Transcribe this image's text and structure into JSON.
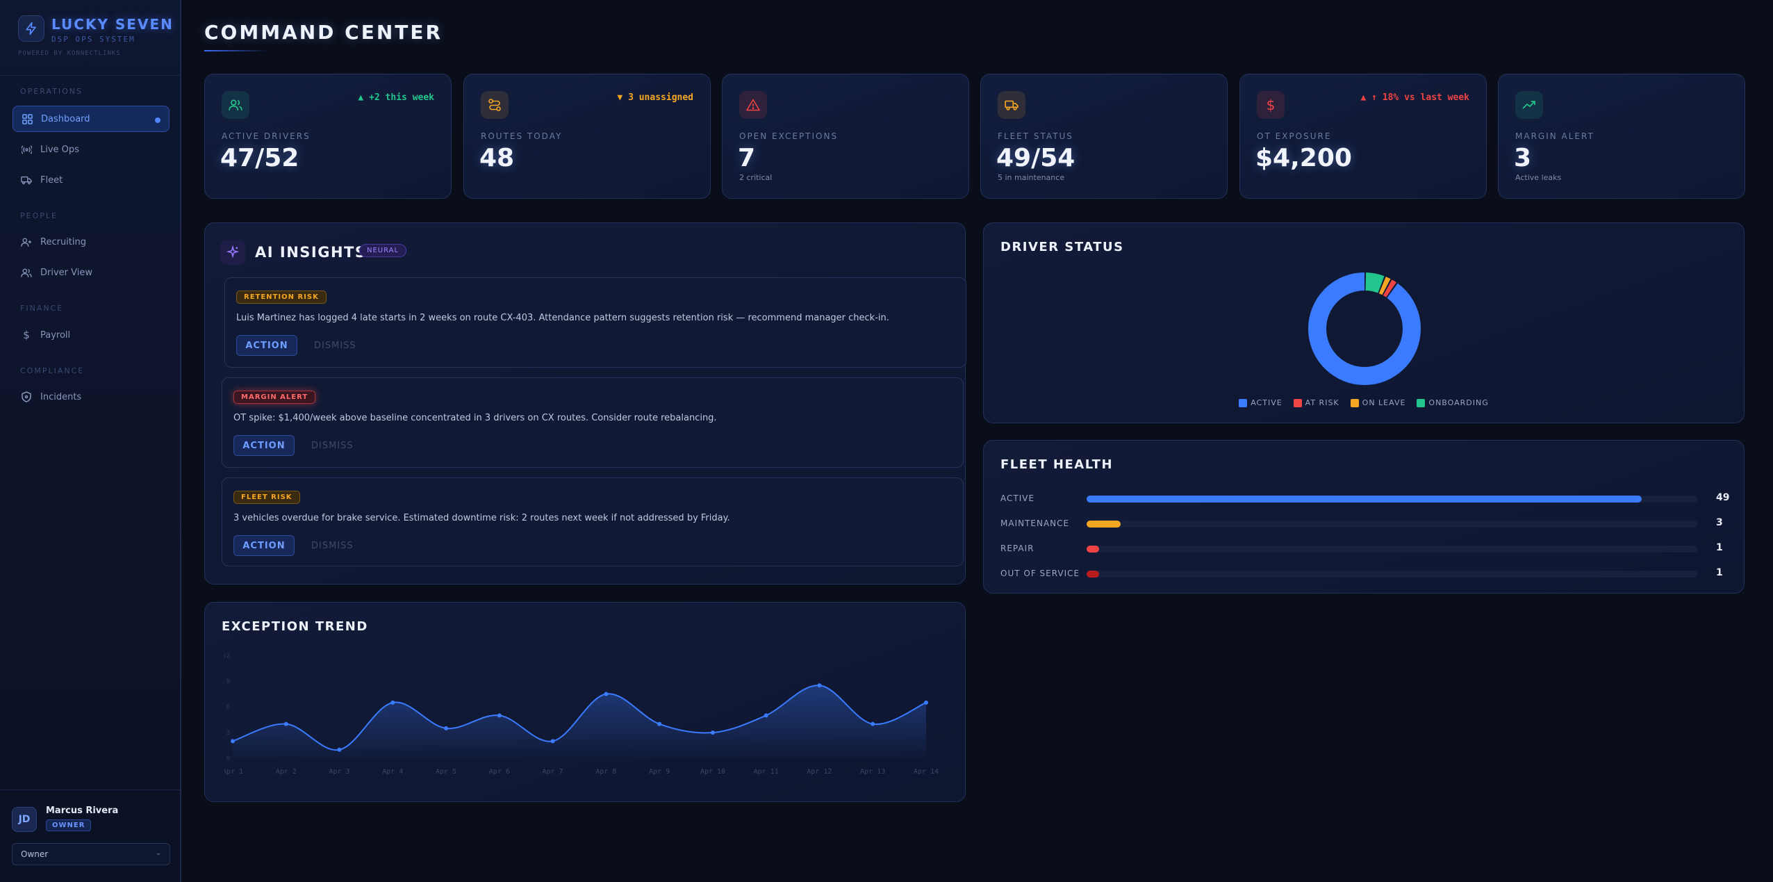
{
  "brand": {
    "name": "LUCKY SEVEN",
    "subtitle": "DSP OPS SYSTEM",
    "powered": "POWERED BY KONNECTLINKS"
  },
  "sidebar": {
    "sections": {
      "operations": "OPERATIONS",
      "people": "PEOPLE",
      "finance": "FINANCE",
      "compliance": "COMPLIANCE"
    },
    "items": [
      {
        "label": "Dashboard",
        "icon": "grid-icon",
        "active": true
      },
      {
        "label": "Live Ops",
        "icon": "broadcast-icon"
      },
      {
        "label": "Fleet",
        "icon": "truck-icon"
      },
      {
        "label": "Recruiting",
        "icon": "user-plus-icon"
      },
      {
        "label": "Driver View",
        "icon": "users-icon"
      },
      {
        "label": "Payroll",
        "icon": "dollar-icon"
      },
      {
        "label": "Incidents",
        "icon": "shield-icon"
      }
    ]
  },
  "user": {
    "initials": "JD",
    "name": "Marcus Rivera",
    "role": "OWNER",
    "role_select": "Owner"
  },
  "page": {
    "title": "COMMAND CENTER"
  },
  "stats": [
    {
      "label": "ACTIVE DRIVERS",
      "value": "47/52",
      "delta": "▲ +2 this week",
      "sub": "",
      "icon": "users-icon",
      "color": "#22c58b"
    },
    {
      "label": "ROUTES TODAY",
      "value": "48",
      "delta": "▼ 3 unassigned",
      "sub": "",
      "icon": "route-icon",
      "color": "#f5a623"
    },
    {
      "label": "OPEN EXCEPTIONS",
      "value": "7",
      "delta": "",
      "sub": "2 critical",
      "icon": "alert-icon",
      "color": "#ef4444"
    },
    {
      "label": "FLEET STATUS",
      "value": "49/54",
      "delta": "",
      "sub": "5 in maintenance",
      "icon": "truck-icon",
      "color": "#f5a623"
    },
    {
      "label": "OT EXPOSURE",
      "value": "$4,200",
      "delta": "▲ ↑ 18% vs last week",
      "sub": "",
      "icon": "dollar-icon",
      "color": "#ef4444"
    },
    {
      "label": "MARGIN ALERT",
      "value": "3",
      "delta": "",
      "sub": "Active leaks",
      "icon": "trend-up-icon",
      "color": "#22c58b"
    }
  ],
  "insights": {
    "title": "AI INSIGHTS",
    "badge": "NEURAL",
    "action_label": "ACTION",
    "dismiss_label": "DISMISS",
    "items": [
      {
        "tag": "RETENTION RISK",
        "text": "Luis Martinez has logged 4 late starts in 2 weeks on route CX-403. Attendance pattern suggests retention risk — recommend manager check-in.",
        "color": "#f5a623"
      },
      {
        "tag": "MARGIN ALERT",
        "text": "OT spike: $1,400/week above baseline concentrated in 3 drivers on CX routes. Consider route rebalancing.",
        "color": "#ef4444"
      },
      {
        "tag": "FLEET RISK",
        "text": "3 vehicles overdue for brake service. Estimated downtime risk: 2 routes next week if not addressed by Friday.",
        "color": "#f5a623"
      }
    ]
  },
  "driver_status": {
    "title": "DRIVER STATUS",
    "legend": [
      {
        "name": "ACTIVE",
        "value": 47,
        "color": "#3b7bff"
      },
      {
        "name": "AT RISK",
        "value": 1,
        "color": "#ef4444"
      },
      {
        "name": "ON LEAVE",
        "value": 1,
        "color": "#f5a623"
      },
      {
        "name": "ONBOARDING",
        "value": 3,
        "color": "#22c58b"
      }
    ]
  },
  "fleet_health": {
    "title": "FLEET HEALTH",
    "max": 54,
    "rows": [
      {
        "label": "ACTIVE",
        "value": 49,
        "color": "#3b7bff"
      },
      {
        "label": "MAINTENANCE",
        "value": 3,
        "color": "#f5a623"
      },
      {
        "label": "REPAIR",
        "value": 1,
        "color": "#ef4444"
      },
      {
        "label": "OUT OF SERVICE",
        "value": 1,
        "color": "#b91c1c"
      }
    ]
  },
  "chart_data": {
    "type": "line",
    "title": "EXCEPTION TREND",
    "x": [
      "Apr 1",
      "Apr 2",
      "Apr 3",
      "Apr 4",
      "Apr 5",
      "Apr 6",
      "Apr 7",
      "Apr 8",
      "Apr 9",
      "Apr 10",
      "Apr 11",
      "Apr 12",
      "Apr 13",
      "Apr 14"
    ],
    "series": [
      {
        "values": [
          2,
          4,
          1,
          6.5,
          3.5,
          5,
          2,
          7.5,
          4,
          3,
          5,
          8.5,
          4,
          6.5
        ],
        "color": "#3b7bff"
      }
    ],
    "yticks": [
      "0",
      "3",
      "6",
      "9",
      "12"
    ],
    "ylim": [
      0,
      12
    ]
  }
}
